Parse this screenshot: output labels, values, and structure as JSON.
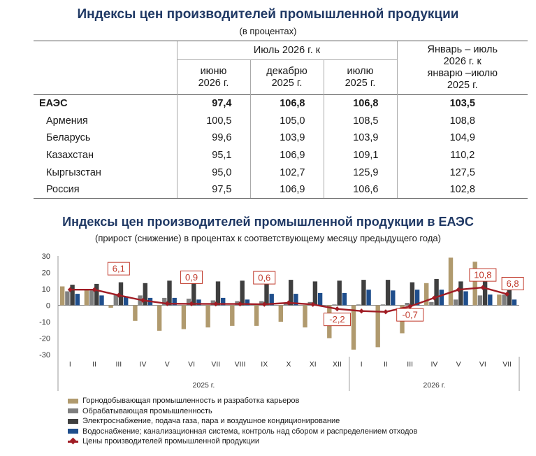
{
  "table": {
    "title": "Индексы цен производителей промышленной продукции",
    "subtitle": "(в процентах)",
    "group_header": "Июль 2026 г. к",
    "col_headers": [
      "июню\n2026 г.",
      "декабрю\n2025 г.",
      "июлю\n2025 г."
    ],
    "col_header_last": "Январь – июль\n2026 г. к\nянварю –июлю\n2025 г.",
    "rows": [
      {
        "name": "ЕАЭС",
        "values": [
          "97,4",
          "106,8",
          "106,8",
          "103,5"
        ],
        "bold": true
      },
      {
        "name": "Армения",
        "values": [
          "100,5",
          "105,0",
          "108,5",
          "108,8"
        ]
      },
      {
        "name": "Беларусь",
        "values": [
          "99,6",
          "103,9",
          "103,9",
          "104,9"
        ]
      },
      {
        "name": "Казахстан",
        "values": [
          "95,1",
          "106,9",
          "109,1",
          "110,2"
        ]
      },
      {
        "name": "Кыргызстан",
        "values": [
          "95,0",
          "102,7",
          "125,9",
          "127,5"
        ]
      },
      {
        "name": "Россия",
        "values": [
          "97,5",
          "106,9",
          "106,6",
          "102,8"
        ]
      }
    ]
  },
  "chart_data": {
    "type": "bar",
    "title": "Индексы цен производителей промышленной продукции в ЕАЭС",
    "subtitle": "(прирост (снижение) в процентах к соответствующему месяцу предыдущего года)",
    "categories": [
      "I",
      "II",
      "III",
      "IV",
      "V",
      "VI",
      "VII",
      "VIII",
      "IX",
      "X",
      "XI",
      "XII",
      "I",
      "II",
      "III",
      "IV",
      "V",
      "VI",
      "VII"
    ],
    "year_groups": [
      {
        "label": "2025 г.",
        "start": 0,
        "end": 11
      },
      {
        "label": "2026 г.",
        "start": 12,
        "end": 18
      }
    ],
    "ylim": [
      -30,
      30
    ],
    "yticks": [
      30,
      20,
      10,
      0,
      -10,
      -20,
      -30
    ],
    "series": [
      {
        "name": "Горнодобывающая промышленность и разработка карьеров",
        "kind": "bar",
        "color": "#b09a6e",
        "values": [
          11.5,
          10,
          -1.5,
          -9.5,
          -15.5,
          -14.5,
          -13.5,
          -12.5,
          -12.5,
          -10,
          -13.5,
          -20,
          -27,
          -25.5,
          -17,
          13.5,
          29,
          26.5,
          6.5
        ]
      },
      {
        "name": "Обрабатывающая промышленность",
        "kind": "bar",
        "color": "#7f7f7f",
        "values": [
          8.5,
          9,
          6.5,
          6,
          4.5,
          4,
          3,
          2.5,
          2.5,
          1.5,
          2,
          0.5,
          0.5,
          0.5,
          1.5,
          2,
          3.5,
          6,
          6.5
        ]
      },
      {
        "name": "Электроснабжение, подача газа, пара и воздушное кондиционирование",
        "kind": "bar",
        "color": "#3f3f3f",
        "values": [
          12.5,
          13,
          14,
          13.5,
          15,
          15.5,
          14.5,
          15,
          17.5,
          15.5,
          14.5,
          15,
          15.5,
          15.5,
          14,
          16,
          14.5,
          14.5,
          11
        ]
      },
      {
        "name": "Водоснабжение; канализационная система, контроль над сбором и распределением отходов",
        "kind": "bar",
        "color": "#1f4e8c",
        "values": [
          7,
          6,
          5.5,
          4.5,
          4.5,
          3.5,
          4.5,
          3.5,
          7,
          7,
          7.5,
          7.5,
          9.5,
          9,
          9.5,
          9.5,
          8.5,
          6.5,
          3.5
        ]
      },
      {
        "name": "Цены производителей промышленной продукции",
        "kind": "line",
        "color": "#a01c24",
        "values": [
          9.5,
          9.5,
          6.1,
          3,
          1,
          0.9,
          0.8,
          0.8,
          0.6,
          1.5,
          0.5,
          -2.2,
          -3.5,
          -4,
          -0.7,
          4.5,
          9.5,
          10.8,
          6.8
        ]
      }
    ],
    "annotations": [
      {
        "index": 2,
        "text": "6,1"
      },
      {
        "index": 5,
        "text": "0,9"
      },
      {
        "index": 8,
        "text": "0,6"
      },
      {
        "index": 11,
        "text": "-2,2"
      },
      {
        "index": 14,
        "text": "-0,7"
      },
      {
        "index": 17,
        "text": "10,8"
      },
      {
        "index": 18,
        "text": "6,8"
      }
    ]
  }
}
